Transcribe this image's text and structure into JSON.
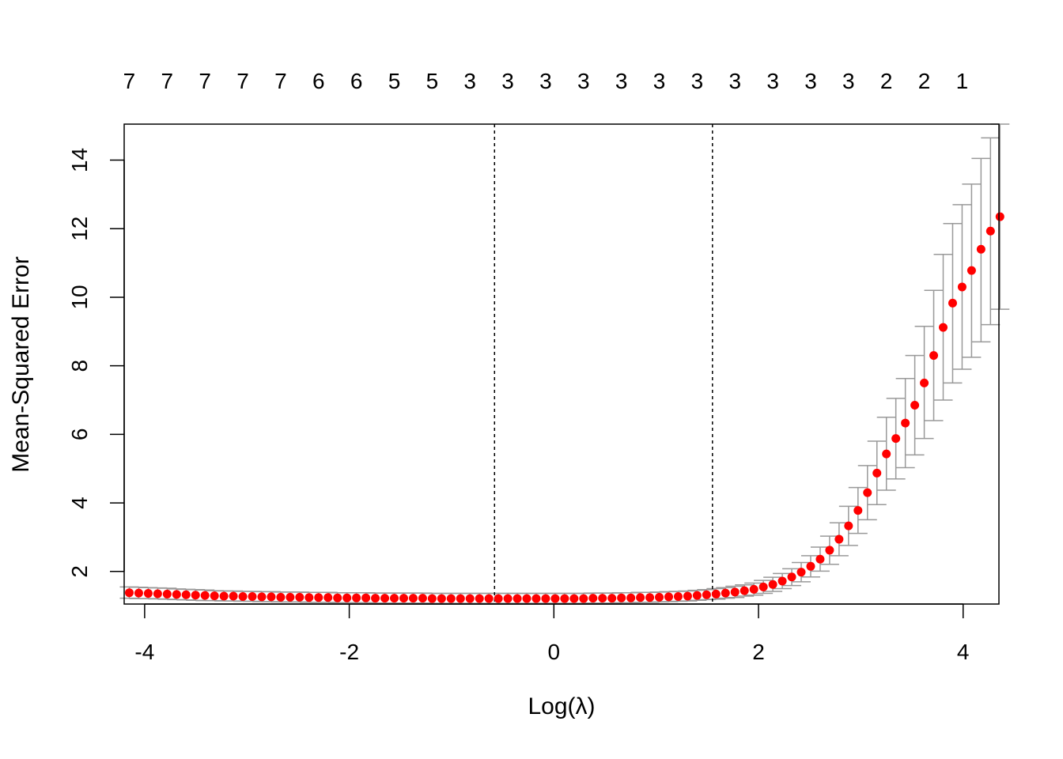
{
  "chart_data": {
    "type": "scatter",
    "title": "",
    "xlabel": "Log(λ)",
    "ylabel": "Mean-Squared Error",
    "xlim": [
      -4.2,
      4.35
    ],
    "ylim": [
      1.05,
      15.05
    ],
    "x_ticks": [
      -4,
      -2,
      0,
      2,
      4
    ],
    "x_tick_labels": [
      "-4",
      "-2",
      "0",
      "2",
      "4"
    ],
    "y_ticks": [
      2,
      4,
      6,
      8,
      10,
      12,
      14
    ],
    "y_tick_labels": [
      "2",
      "4",
      "6",
      "8",
      "10",
      "12",
      "14"
    ],
    "top_axis": {
      "x": [
        -4.15,
        -3.78,
        -3.41,
        -3.04,
        -2.67,
        -2.3,
        -1.93,
        -1.56,
        -1.19,
        -0.82,
        -0.45,
        -0.08,
        0.29,
        0.66,
        1.03,
        1.4,
        1.77,
        2.14,
        2.51,
        2.88,
        3.25,
        3.62,
        3.99
      ],
      "labels": [
        "7",
        "7",
        "7",
        "7",
        "7",
        "6",
        "6",
        "5",
        "5",
        "3",
        "3",
        "3",
        "3",
        "3",
        "3",
        "3",
        "3",
        "3",
        "3",
        "3",
        "2",
        "2",
        "1"
      ]
    },
    "vlines": [
      -0.58,
      1.55
    ],
    "grid": false,
    "series": [
      {
        "color": "#ff0000",
        "error_bar_color": "#999999",
        "x_start": -4.15,
        "x_step": 0.0925,
        "values": [
          1.38,
          1.37,
          1.36,
          1.35,
          1.34,
          1.33,
          1.32,
          1.31,
          1.3,
          1.29,
          1.28,
          1.28,
          1.27,
          1.27,
          1.26,
          1.26,
          1.25,
          1.25,
          1.25,
          1.24,
          1.24,
          1.24,
          1.23,
          1.23,
          1.23,
          1.23,
          1.22,
          1.22,
          1.22,
          1.22,
          1.22,
          1.22,
          1.21,
          1.21,
          1.21,
          1.21,
          1.21,
          1.21,
          1.21,
          1.21,
          1.21,
          1.21,
          1.21,
          1.21,
          1.21,
          1.21,
          1.21,
          1.21,
          1.21,
          1.22,
          1.22,
          1.22,
          1.23,
          1.23,
          1.24,
          1.24,
          1.25,
          1.26,
          1.27,
          1.28,
          1.3,
          1.32,
          1.34,
          1.37,
          1.4,
          1.44,
          1.48,
          1.55,
          1.62,
          1.72,
          1.84,
          1.98,
          2.15,
          2.36,
          2.62,
          2.94,
          3.33,
          3.78,
          4.3,
          4.87,
          5.43,
          5.88,
          6.33,
          6.85,
          7.5,
          8.3,
          9.12,
          9.83,
          10.3,
          10.78,
          11.4,
          11.93,
          12.35
        ],
        "lower": [
          1.22,
          1.21,
          1.21,
          1.2,
          1.19,
          1.18,
          1.17,
          1.16,
          1.15,
          1.15,
          1.14,
          1.14,
          1.13,
          1.13,
          1.12,
          1.12,
          1.11,
          1.11,
          1.11,
          1.1,
          1.1,
          1.1,
          1.09,
          1.09,
          1.09,
          1.09,
          1.08,
          1.08,
          1.08,
          1.08,
          1.08,
          1.08,
          1.07,
          1.07,
          1.07,
          1.07,
          1.07,
          1.07,
          1.07,
          1.07,
          1.07,
          1.07,
          1.07,
          1.07,
          1.07,
          1.07,
          1.07,
          1.07,
          1.07,
          1.08,
          1.08,
          1.08,
          1.09,
          1.09,
          1.1,
          1.1,
          1.11,
          1.12,
          1.13,
          1.14,
          1.16,
          1.18,
          1.19,
          1.22,
          1.24,
          1.28,
          1.31,
          1.36,
          1.42,
          1.5,
          1.59,
          1.7,
          1.84,
          2.01,
          2.21,
          2.46,
          2.76,
          3.11,
          3.51,
          3.95,
          4.37,
          4.7,
          5.03,
          5.4,
          5.88,
          6.4,
          7.0,
          7.5,
          7.9,
          8.25,
          8.7,
          9.2,
          9.65
        ],
        "upper": [
          1.55,
          1.54,
          1.53,
          1.52,
          1.51,
          1.49,
          1.48,
          1.47,
          1.46,
          1.44,
          1.43,
          1.43,
          1.42,
          1.42,
          1.41,
          1.41,
          1.4,
          1.4,
          1.4,
          1.39,
          1.39,
          1.39,
          1.38,
          1.38,
          1.38,
          1.38,
          1.37,
          1.37,
          1.37,
          1.37,
          1.37,
          1.37,
          1.36,
          1.36,
          1.36,
          1.36,
          1.36,
          1.36,
          1.36,
          1.36,
          1.36,
          1.36,
          1.36,
          1.36,
          1.36,
          1.36,
          1.36,
          1.36,
          1.36,
          1.37,
          1.37,
          1.37,
          1.38,
          1.38,
          1.39,
          1.39,
          1.4,
          1.41,
          1.42,
          1.43,
          1.45,
          1.47,
          1.5,
          1.53,
          1.57,
          1.61,
          1.66,
          1.74,
          1.83,
          1.94,
          2.08,
          2.26,
          2.46,
          2.71,
          3.03,
          3.42,
          3.9,
          4.45,
          5.09,
          5.8,
          6.5,
          7.05,
          7.63,
          8.3,
          9.15,
          10.2,
          11.25,
          12.15,
          12.7,
          13.3,
          14.05,
          14.65,
          15.05
        ]
      }
    ]
  }
}
